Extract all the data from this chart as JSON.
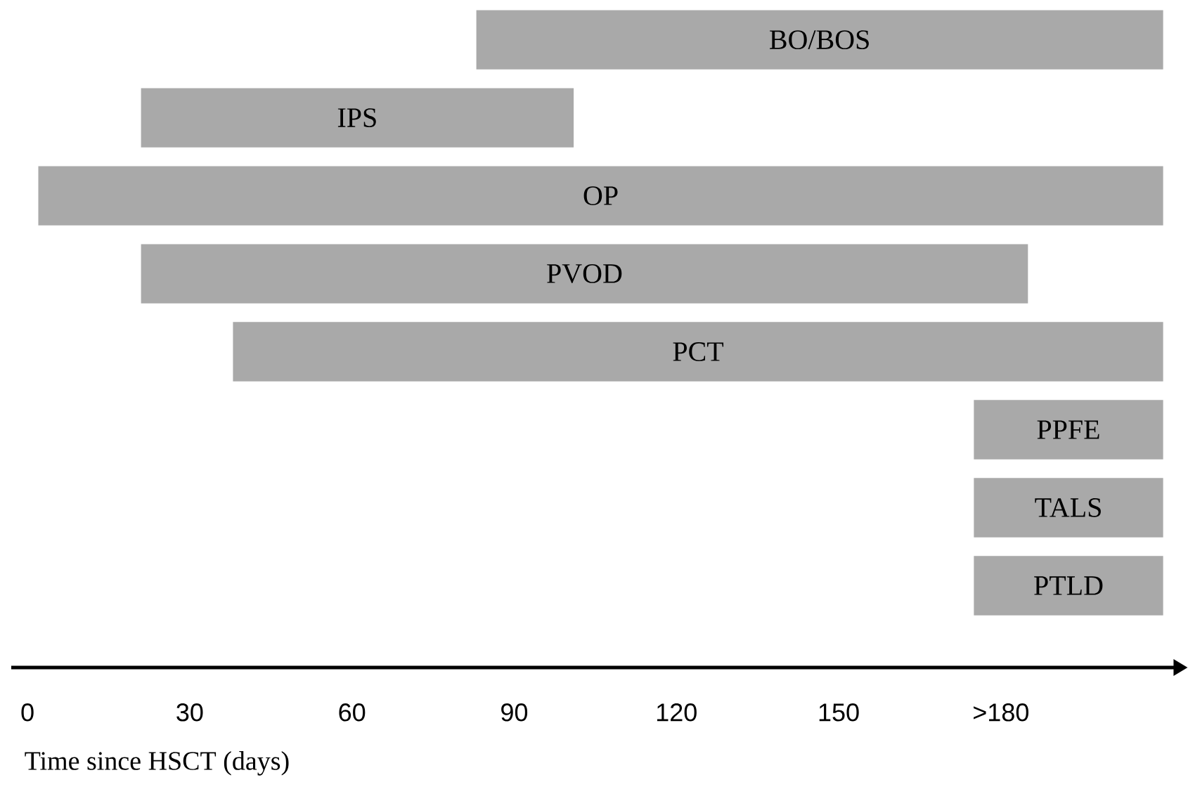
{
  "chart_data": {
    "type": "bar",
    "orientation": "horizontal",
    "xlabel": "Time since HSCT (days)",
    "categories": [
      "BO/BOS",
      "IPS",
      "OP",
      "PVOD",
      "PCT",
      "PPFE",
      "TALS",
      "PTLD"
    ],
    "base": [
      83,
      21,
      2,
      21,
      38,
      175,
      175,
      175
    ],
    "values": [
      127,
      80,
      208,
      164,
      172,
      35,
      35,
      35
    ],
    "color": "#a9a9a9",
    "xlim": [
      -3,
      212
    ],
    "xticks": [
      0,
      30,
      60,
      90,
      120,
      150,
      {
        "value": 180,
        "label": ">180"
      }
    ]
  }
}
